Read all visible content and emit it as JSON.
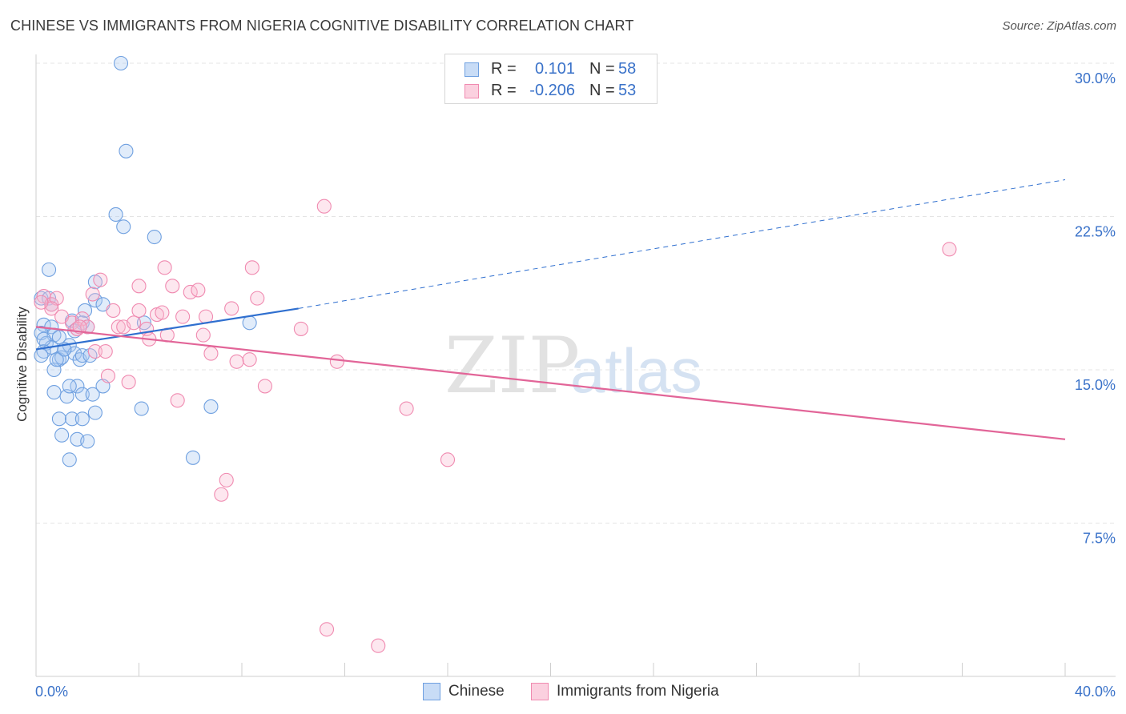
{
  "title": "CHINESE VS IMMIGRANTS FROM NIGERIA COGNITIVE DISABILITY CORRELATION CHART",
  "source": "Source: ZipAtlas.com",
  "watermark": {
    "zip": "ZIP",
    "atlas": "atlas"
  },
  "legend_top": {
    "rows": [
      {
        "r_label": "R =",
        "r_value": "0.101",
        "n_label": "N =",
        "n_value": "58",
        "color": "#6fa0e0"
      },
      {
        "r_label": "R =",
        "r_value": "-0.206",
        "n_label": "N =",
        "n_value": "53",
        "color": "#f08ab0"
      }
    ]
  },
  "legend_bottom": [
    {
      "label": "Chinese",
      "color": "#6fa0e0"
    },
    {
      "label": "Immigrants from Nigeria",
      "color": "#f08ab0"
    }
  ],
  "chart_data": {
    "type": "scatter",
    "title": "CHINESE VS IMMIGRANTS FROM NIGERIA COGNITIVE DISABILITY CORRELATION CHART",
    "xlabel": "",
    "ylabel": "Cognitive Disability",
    "xlim": [
      0,
      40
    ],
    "ylim": [
      0,
      30.5
    ],
    "x_tick_labels": [
      "0.0%",
      "40.0%"
    ],
    "y_ticks": [
      7.5,
      15.0,
      22.5,
      30.0
    ],
    "y_tick_labels": [
      "7.5%",
      "15.0%",
      "22.5%",
      "30.0%"
    ],
    "grid": true,
    "legend_position": "top-center",
    "series": [
      {
        "name": "Chinese",
        "color": "#6fa0e0",
        "line_color": "#2f6fcf",
        "trend": {
          "x0": 0,
          "y0": 16.0,
          "x1": 10.2,
          "y1": 18.0,
          "dashed_to_x": 40,
          "dashed_to_y": 24.3
        },
        "points": [
          [
            3.3,
            30.0
          ],
          [
            3.5,
            25.7
          ],
          [
            3.1,
            22.6
          ],
          [
            3.4,
            22.0
          ],
          [
            4.6,
            21.5
          ],
          [
            0.5,
            19.9
          ],
          [
            2.3,
            19.3
          ],
          [
            0.2,
            18.5
          ],
          [
            0.5,
            18.5
          ],
          [
            0.6,
            18.2
          ],
          [
            2.3,
            18.4
          ],
          [
            2.6,
            18.2
          ],
          [
            1.9,
            17.9
          ],
          [
            0.3,
            17.2
          ],
          [
            0.6,
            17.1
          ],
          [
            1.4,
            17.4
          ],
          [
            1.8,
            17.3
          ],
          [
            2.0,
            17.1
          ],
          [
            4.2,
            17.3
          ],
          [
            8.3,
            17.3
          ],
          [
            0.2,
            16.8
          ],
          [
            0.7,
            16.7
          ],
          [
            0.9,
            16.6
          ],
          [
            1.5,
            16.9
          ],
          [
            0.4,
            16.3
          ],
          [
            0.6,
            16.1
          ],
          [
            0.3,
            15.9
          ],
          [
            1.1,
            16.0
          ],
          [
            1.3,
            16.2
          ],
          [
            0.2,
            15.7
          ],
          [
            0.9,
            15.5
          ],
          [
            1.0,
            15.6
          ],
          [
            1.5,
            15.8
          ],
          [
            1.7,
            15.5
          ],
          [
            1.8,
            15.7
          ],
          [
            0.7,
            15.0
          ],
          [
            0.7,
            13.9
          ],
          [
            1.2,
            13.7
          ],
          [
            1.6,
            14.2
          ],
          [
            1.3,
            14.2
          ],
          [
            1.8,
            13.8
          ],
          [
            2.2,
            13.8
          ],
          [
            2.6,
            14.2
          ],
          [
            0.9,
            12.6
          ],
          [
            1.4,
            12.6
          ],
          [
            1.8,
            12.6
          ],
          [
            2.3,
            12.9
          ],
          [
            4.1,
            13.1
          ],
          [
            6.8,
            13.2
          ],
          [
            1.0,
            11.8
          ],
          [
            1.6,
            11.6
          ],
          [
            2.0,
            11.5
          ],
          [
            1.3,
            10.6
          ],
          [
            6.1,
            10.7
          ],
          [
            0.3,
            16.5
          ],
          [
            1.1,
            16.0
          ],
          [
            0.8,
            15.5
          ],
          [
            2.1,
            15.7
          ]
        ]
      },
      {
        "name": "Immigrants from Nigeria",
        "color": "#f08ab0",
        "line_color": "#e26598",
        "trend": {
          "x0": 0,
          "y0": 17.1,
          "x1": 40,
          "y1": 11.6
        },
        "points": [
          [
            11.2,
            23.0
          ],
          [
            35.5,
            20.9
          ],
          [
            5.0,
            20.0
          ],
          [
            8.4,
            20.0
          ],
          [
            2.5,
            19.4
          ],
          [
            4.0,
            19.1
          ],
          [
            5.3,
            19.1
          ],
          [
            6.0,
            18.8
          ],
          [
            6.3,
            18.9
          ],
          [
            0.3,
            18.6
          ],
          [
            0.6,
            18.2
          ],
          [
            0.8,
            18.5
          ],
          [
            2.2,
            18.7
          ],
          [
            8.6,
            18.5
          ],
          [
            0.6,
            18.0
          ],
          [
            3.0,
            17.9
          ],
          [
            4.0,
            17.9
          ],
          [
            4.7,
            17.7
          ],
          [
            4.9,
            17.8
          ],
          [
            7.6,
            18.0
          ],
          [
            1.0,
            17.6
          ],
          [
            1.4,
            17.3
          ],
          [
            1.8,
            17.5
          ],
          [
            5.7,
            17.6
          ],
          [
            6.6,
            17.6
          ],
          [
            1.6,
            17.0
          ],
          [
            2.0,
            17.1
          ],
          [
            3.2,
            17.1
          ],
          [
            3.4,
            17.1
          ],
          [
            4.3,
            17.0
          ],
          [
            10.3,
            17.0
          ],
          [
            4.4,
            16.5
          ],
          [
            5.1,
            16.7
          ],
          [
            6.5,
            16.7
          ],
          [
            2.3,
            15.9
          ],
          [
            2.7,
            15.9
          ],
          [
            6.8,
            15.8
          ],
          [
            7.8,
            15.4
          ],
          [
            8.3,
            15.5
          ],
          [
            11.7,
            15.4
          ],
          [
            2.8,
            14.7
          ],
          [
            3.6,
            14.4
          ],
          [
            8.9,
            14.2
          ],
          [
            5.5,
            13.5
          ],
          [
            14.4,
            13.1
          ],
          [
            16.0,
            10.6
          ],
          [
            7.4,
            9.6
          ],
          [
            7.2,
            8.9
          ],
          [
            11.3,
            2.3
          ],
          [
            13.3,
            1.5
          ],
          [
            0.2,
            18.3
          ],
          [
            1.7,
            17.1
          ],
          [
            3.8,
            17.3
          ]
        ]
      }
    ]
  }
}
